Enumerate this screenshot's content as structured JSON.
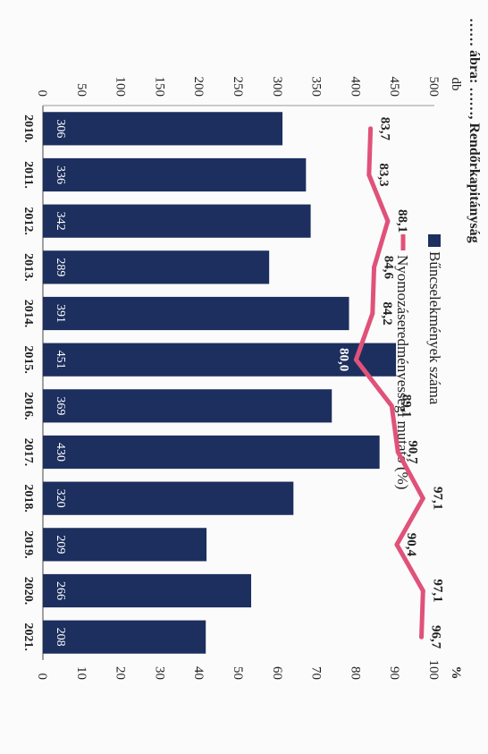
{
  "page": {
    "title": "…… ábra: ……, Rendőrkapitányság"
  },
  "chart_data": {
    "type": "bar",
    "categories": [
      "2010.",
      "2011.",
      "2012.",
      "2013.",
      "2014.",
      "2015.",
      "2016.",
      "2017.",
      "2018.",
      "2019.",
      "2020.",
      "2021."
    ],
    "left_axis": {
      "unit": "db",
      "ylim": [
        0,
        500
      ],
      "ticks": [
        "0",
        "50",
        "100",
        "150",
        "200",
        "250",
        "300",
        "350",
        "400",
        "450",
        "500"
      ]
    },
    "right_axis": {
      "unit": "%",
      "ylim": [
        0,
        100
      ],
      "ticks": [
        "0",
        "10",
        "20",
        "30",
        "40",
        "50",
        "60",
        "70",
        "80",
        "90",
        "100"
      ]
    },
    "series": [
      {
        "name": "Bűncselekmények száma",
        "kind": "bar",
        "axis": "left",
        "color": "#1d2f5e",
        "values": [
          306,
          336,
          342,
          289,
          391,
          451,
          369,
          430,
          320,
          209,
          266,
          208
        ],
        "labels": [
          "306",
          "336",
          "342",
          "289",
          "391",
          "451",
          "369",
          "430",
          "320",
          "209",
          "266",
          "208"
        ]
      },
      {
        "name": "Nyomozáseredményességi mutató (%)",
        "kind": "line",
        "axis": "right",
        "color": "#e0527a",
        "values": [
          83.7,
          83.3,
          88.1,
          84.6,
          84.2,
          80.0,
          89.1,
          90.7,
          97.1,
          90.4,
          97.1,
          96.7
        ],
        "labels": [
          "83,7",
          "83,3",
          "88,1",
          "84,6",
          "84,2",
          "80,0",
          "89,1",
          "90,7",
          "97,1",
          "90,4",
          "97,1",
          "96,7"
        ]
      }
    ],
    "legend": "top-left",
    "grid": false
  }
}
